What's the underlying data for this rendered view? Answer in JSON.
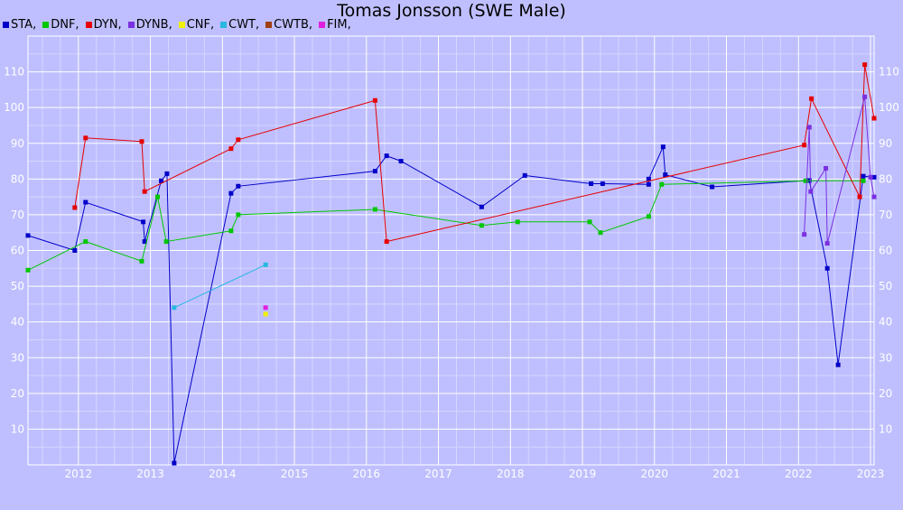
{
  "chart_data": {
    "type": "line",
    "title": "Tomas Jonsson (SWE Male)",
    "xlabel": "",
    "ylabel": "",
    "xlim": [
      2011.3,
      2023.05
    ],
    "ylim": [
      0,
      120
    ],
    "x_ticks": [
      "2012",
      "2013",
      "2014",
      "2015",
      "2016",
      "2017",
      "2018",
      "2019",
      "2020",
      "2021",
      "2022",
      "2023"
    ],
    "y_ticks": [
      "10",
      "20",
      "30",
      "40",
      "50",
      "60",
      "70",
      "80",
      "90",
      "100",
      "110"
    ],
    "grid": true,
    "legend_position": "top-left",
    "series": [
      {
        "name": "STA,",
        "color": "#0000c8",
        "points": [
          [
            2011.3,
            64.2
          ],
          [
            2011.95,
            60.0
          ],
          [
            2012.1,
            73.5
          ],
          [
            2012.9,
            68.0
          ],
          [
            2012.92,
            62.5
          ],
          [
            2013.15,
            79.5
          ],
          [
            2013.23,
            81.5
          ],
          [
            2013.33,
            0.5
          ],
          [
            2014.12,
            76.0
          ],
          [
            2014.22,
            78.0
          ],
          [
            2016.12,
            82.2
          ],
          [
            2016.28,
            86.5
          ],
          [
            2016.48,
            85.0
          ],
          [
            2017.6,
            72.2
          ],
          [
            2018.2,
            81.0
          ],
          [
            2019.12,
            78.7
          ],
          [
            2019.28,
            78.7
          ],
          [
            2019.92,
            78.5
          ],
          [
            2019.92,
            80.0
          ],
          [
            2020.12,
            89.0
          ],
          [
            2020.15,
            81.2
          ],
          [
            2020.8,
            77.8
          ],
          [
            2022.15,
            79.6
          ],
          [
            2022.4,
            55.0
          ],
          [
            2022.55,
            28.0
          ],
          [
            2022.9,
            80.8
          ],
          [
            2023.05,
            80.5
          ]
        ]
      },
      {
        "name": "DNF,",
        "color": "#00c800",
        "points": [
          [
            2011.3,
            54.5
          ],
          [
            2012.1,
            62.5
          ],
          [
            2012.88,
            57.0
          ],
          [
            2013.1,
            75.0
          ],
          [
            2013.22,
            62.5
          ],
          [
            2014.12,
            65.5
          ],
          [
            2014.22,
            70.0
          ],
          [
            2016.12,
            71.5
          ],
          [
            2017.6,
            67.0
          ],
          [
            2018.1,
            68.0
          ],
          [
            2019.1,
            68.0
          ],
          [
            2019.25,
            65.0
          ],
          [
            2019.92,
            69.5
          ],
          [
            2020.1,
            78.5
          ],
          [
            2022.1,
            79.5
          ],
          [
            2022.9,
            79.5
          ]
        ]
      },
      {
        "name": "DYN,",
        "color": "#e60000",
        "points": [
          [
            2011.95,
            72.0
          ],
          [
            2012.1,
            91.5
          ],
          [
            2012.88,
            90.5
          ],
          [
            2012.92,
            76.5
          ],
          [
            2014.12,
            88.5
          ],
          [
            2014.22,
            91.0
          ],
          [
            2016.12,
            102.0
          ],
          [
            2016.28,
            62.5
          ],
          [
            2022.08,
            89.5
          ],
          [
            2022.18,
            102.5
          ],
          [
            2022.85,
            75.0
          ],
          [
            2022.92,
            112.0
          ],
          [
            2023.05,
            97.0
          ]
        ]
      },
      {
        "name": "DYNB,",
        "color": "#7b2fe0",
        "points": [
          [
            2022.08,
            64.5
          ],
          [
            2022.15,
            94.5
          ],
          [
            2022.17,
            76.5
          ],
          [
            2022.38,
            83.0
          ],
          [
            2022.4,
            62.0
          ],
          [
            2022.92,
            103.0
          ],
          [
            2023.0,
            80.5
          ],
          [
            2023.05,
            75.0
          ]
        ]
      },
      {
        "name": "CNF,",
        "color": "#f0f000",
        "points": [
          [
            2014.6,
            42.2
          ]
        ]
      },
      {
        "name": "CWT,",
        "color": "#28b8e0",
        "points": [
          [
            2013.33,
            44.0
          ],
          [
            2014.6,
            56.0
          ]
        ]
      },
      {
        "name": "CWTB,",
        "color": "#a04010",
        "points": []
      },
      {
        "name": "FIM,",
        "color": "#e020e0",
        "points": [
          [
            2014.6,
            44.0
          ]
        ]
      }
    ]
  }
}
